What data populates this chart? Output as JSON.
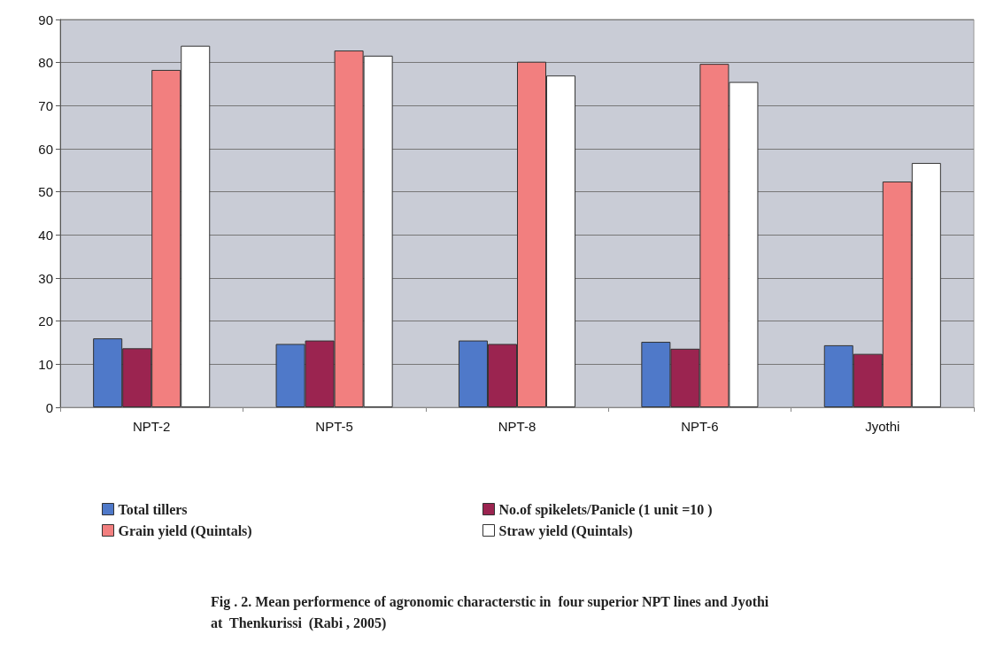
{
  "chart_data": {
    "type": "bar",
    "title": "Fig . 2. Mean performence of agronomic characterstic in  four superior NPT lines and Jyothi at  Thenkurissi  (Rabi , 2005)",
    "categories": [
      "NPT-2",
      "NPT-5",
      "NPT-8",
      "NPT-6",
      "Jyothi"
    ],
    "series": [
      {
        "name": "Total tillers",
        "color": "#4f79c9",
        "values": [
          16,
          14.7,
          15.5,
          15.2,
          14.4
        ]
      },
      {
        "name": "No.of spikelets/Panicle (1 unit =10 )",
        "color": "#9b2450",
        "values": [
          13.7,
          15.5,
          14.7,
          13.6,
          12.4
        ]
      },
      {
        "name": "Grain yield (Quintals)",
        "color": "#f27f7f",
        "values": [
          78.3,
          82.8,
          80.2,
          79.7,
          52.4
        ]
      },
      {
        "name": "Straw yield (Quintals)",
        "color": "#ffffff",
        "values": [
          83.9,
          81.6,
          77,
          75.5,
          56.7
        ]
      }
    ],
    "ylim": [
      0,
      90
    ],
    "yticks": [
      0,
      10,
      20,
      30,
      40,
      50,
      60,
      70,
      80,
      90
    ],
    "grid": "y",
    "legend": "bottom"
  }
}
